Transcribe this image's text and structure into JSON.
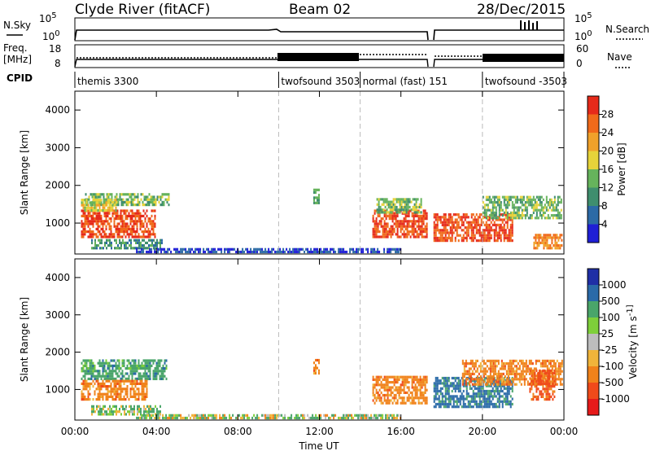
{
  "header": {
    "station": "Clyde River (fitACF)",
    "beam": "Beam 02",
    "date": "28/Dec/2015"
  },
  "strips": {
    "nsky_label": "N.Sky",
    "nsky_ticks": [
      "10^5",
      "10^0"
    ],
    "nsearch_label": "N.Search",
    "nsearch_ticks": [
      "10^5",
      "10^0"
    ],
    "freq_label_1": "Freq.",
    "freq_label_2": "[MHz]",
    "freq_ticks": [
      "18",
      "8"
    ],
    "nave_label": "Nave",
    "nave_ticks": [
      "60",
      "0"
    ],
    "cpid_label": "CPID"
  },
  "cpid_segments": [
    {
      "label": "themis 3300",
      "start_h": 0,
      "end_h": 10
    },
    {
      "label": "twofsound 3503",
      "start_h": 10,
      "end_h": 14
    },
    {
      "label": "normal (fast) 151",
      "start_h": 14,
      "end_h": 20
    },
    {
      "label": "twofsound -3503",
      "start_h": 20,
      "end_h": 24
    }
  ],
  "colors": {
    "power": [
      "#1f1fd6",
      "#2c6aa6",
      "#3f8e6e",
      "#66b35c",
      "#e6d33a",
      "#f0a12a",
      "#f06a1a",
      "#e62a1a"
    ],
    "velocity": [
      "#e61a1a",
      "#f04a1a",
      "#f0821a",
      "#f0b43a",
      "#bdbdbd",
      "#7ecf3a",
      "#4aa56a",
      "#2a6aa8",
      "#1f2fa6"
    ]
  },
  "chart_data": [
    {
      "type": "heatmap",
      "title": "Power",
      "xlabel": "",
      "ylabel": "Slant Range [km]",
      "xlim": [
        0,
        24
      ],
      "ylim": [
        180,
        4500
      ],
      "x_ticks": [
        "00:00",
        "04:00",
        "08:00",
        "12:00",
        "16:00",
        "20:00",
        "00:00"
      ],
      "y_ticks": [
        1000,
        2000,
        3000,
        4000
      ],
      "colorbar_label": "Power [dB]",
      "colorbar_ticks": [
        "4",
        "8",
        "12",
        "16",
        "20",
        "24",
        "28"
      ],
      "colorbar_range": [
        0,
        32
      ],
      "regions": [
        {
          "t0": 0.3,
          "t1": 3.9,
          "r0": 600,
          "r1": 1350,
          "v": 28
        },
        {
          "t0": 0.5,
          "t1": 4.6,
          "r0": 1450,
          "r1": 1750,
          "v": 14
        },
        {
          "t0": 0.3,
          "t1": 2.0,
          "r0": 1300,
          "r1": 1600,
          "v": 18
        },
        {
          "t0": 0.8,
          "t1": 4.3,
          "r0": 300,
          "r1": 550,
          "v": 10
        },
        {
          "t0": 11.7,
          "t1": 12.0,
          "r0": 1500,
          "r1": 1900,
          "v": 12
        },
        {
          "t0": 14.6,
          "t1": 17.3,
          "r0": 600,
          "r1": 1300,
          "v": 28
        },
        {
          "t0": 14.8,
          "t1": 17.0,
          "r0": 1250,
          "r1": 1650,
          "v": 14
        },
        {
          "t0": 17.6,
          "t1": 21.5,
          "r0": 500,
          "r1": 1250,
          "v": 28
        },
        {
          "t0": 20.0,
          "t1": 23.9,
          "r0": 1100,
          "r1": 1700,
          "v": 14
        },
        {
          "t0": 22.5,
          "t1": 23.9,
          "r0": 300,
          "r1": 650,
          "v": 24
        },
        {
          "t0": 3.0,
          "t1": 16.0,
          "r0": 200,
          "r1": 320,
          "v": 4
        }
      ]
    },
    {
      "type": "heatmap",
      "title": "Velocity",
      "xlabel": "Time UT",
      "ylabel": "Slant Range [km]",
      "xlim": [
        0,
        24
      ],
      "ylim": [
        180,
        4500
      ],
      "x_ticks": [
        "00:00",
        "04:00",
        "08:00",
        "12:00",
        "16:00",
        "20:00",
        "00:00"
      ],
      "y_ticks": [
        1000,
        2000,
        3000,
        4000
      ],
      "colorbar_label": "Velocity [m s^-1]",
      "colorbar_ticks": [
        "-1000",
        "-500",
        "-100",
        "-25",
        "25",
        "100",
        "500",
        "1000"
      ],
      "colorbar_range": [
        -1200,
        1200
      ],
      "regions": [
        {
          "t0": 0.3,
          "t1": 4.5,
          "r0": 1250,
          "r1": 1750,
          "v": 300
        },
        {
          "t0": 0.3,
          "t1": 3.5,
          "r0": 700,
          "r1": 1250,
          "v": -300
        },
        {
          "t0": 0.8,
          "t1": 4.2,
          "r0": 300,
          "r1": 550,
          "v": 150
        },
        {
          "t0": 11.7,
          "t1": 12.0,
          "r0": 1400,
          "r1": 1800,
          "v": -300
        },
        {
          "t0": 14.6,
          "t1": 17.3,
          "r0": 600,
          "r1": 1300,
          "v": -300
        },
        {
          "t0": 17.6,
          "t1": 21.5,
          "r0": 500,
          "r1": 1300,
          "v": 600
        },
        {
          "t0": 19.0,
          "t1": 23.9,
          "r0": 1100,
          "r1": 1750,
          "v": -300
        },
        {
          "t0": 22.3,
          "t1": 23.5,
          "r0": 700,
          "r1": 1500,
          "v": -600
        },
        {
          "t0": 3.0,
          "t1": 16.0,
          "r0": 200,
          "r1": 320,
          "v": 80
        }
      ]
    }
  ]
}
